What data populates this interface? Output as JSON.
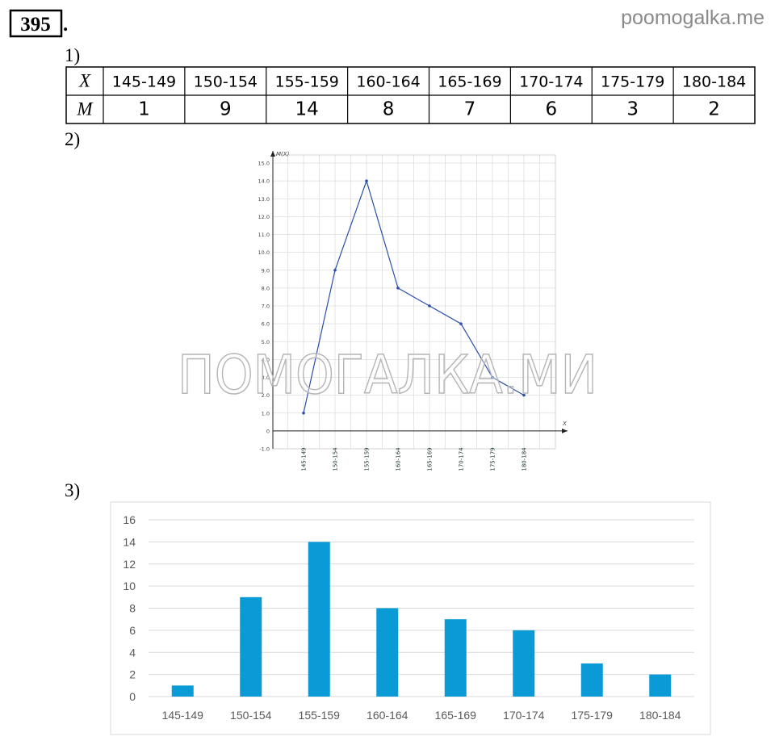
{
  "problem_number": "395",
  "problem_suffix": ".",
  "site": "poomogalka.me",
  "watermark": "ПОМОГАЛКА.МИ",
  "section_labels": [
    "1)",
    "2)",
    "3)"
  ],
  "table": {
    "rows": [
      [
        "X",
        "145-149",
        "150-154",
        "155-159",
        "160-164",
        "165-169",
        "170-174",
        "175-179",
        "180-184"
      ],
      [
        "M",
        1,
        9,
        14,
        8,
        7,
        6,
        3,
        2
      ]
    ]
  },
  "chart_data": [
    {
      "type": "line",
      "y_label": "M(X)",
      "x_label": "X",
      "color": "#2a4fa8",
      "categories": [
        "145-149",
        "150-154",
        "155-159",
        "160-164",
        "165-169",
        "170-174",
        "175-179",
        "180-184"
      ],
      "values": [
        1,
        9,
        14,
        8,
        7,
        6,
        3,
        2
      ],
      "ylim": [
        -1,
        15
      ],
      "yticks": [
        {
          "value": -1,
          "label": "-1.0"
        },
        0,
        {
          "value": 1,
          "label": "1.0"
        },
        {
          "value": 2,
          "label": "2.0"
        },
        {
          "value": 3,
          "label": "3.0"
        },
        {
          "value": 4,
          "label": "4.0"
        },
        {
          "value": 5,
          "label": "5.0"
        },
        {
          "value": 6,
          "label": "6.0"
        },
        {
          "value": 7,
          "label": "7.0"
        },
        {
          "value": 8,
          "label": "8.0"
        },
        {
          "value": 9,
          "label": "9.0"
        },
        {
          "value": 10,
          "label": "10.0"
        },
        {
          "value": 11,
          "label": "11.0"
        },
        {
          "value": 12,
          "label": "12.0"
        },
        {
          "value": 13,
          "label": "13.0"
        },
        {
          "value": 14,
          "label": "14.0"
        },
        {
          "value": 15,
          "label": "15.0"
        }
      ],
      "grid": true
    },
    {
      "type": "bar",
      "color": "#0a9ad6",
      "categories": [
        "145-149",
        "150-154",
        "155-159",
        "160-164",
        "165-169",
        "170-174",
        "175-179",
        "180-184"
      ],
      "values": [
        1,
        9,
        14,
        8,
        7,
        6,
        3,
        2
      ],
      "ylim": [
        0,
        16
      ],
      "yticks": [
        0,
        2,
        4,
        6,
        8,
        10,
        12,
        14,
        16
      ],
      "grid": true
    }
  ]
}
